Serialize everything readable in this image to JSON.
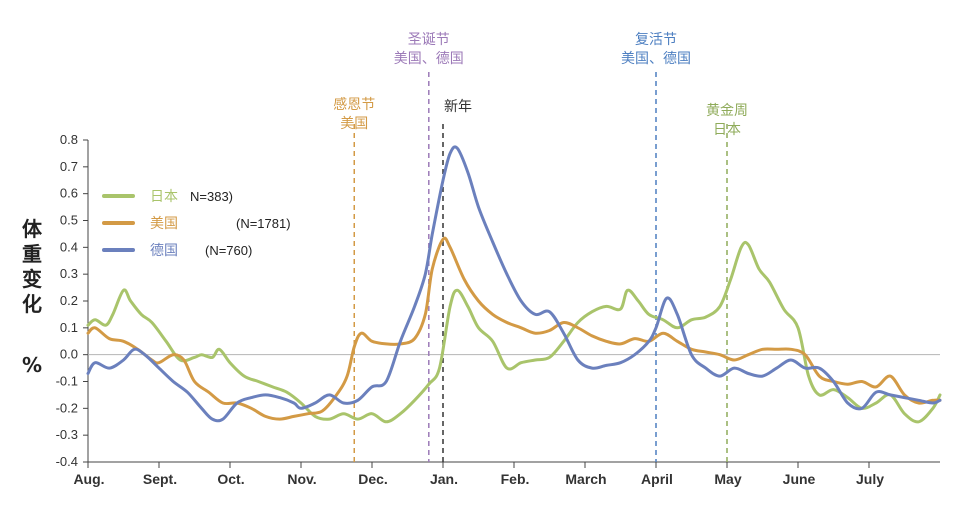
{
  "colors": {
    "japan": "#a9c46b",
    "usa": "#d39a45",
    "germany": "#6b80bd"
  },
  "chart_data": {
    "type": "line",
    "ylabel_chars": [
      "体",
      "重",
      "变",
      "化"
    ],
    "ylabel_unit": "%",
    "ylim": [
      -0.4,
      0.8
    ],
    "yticks": [
      "0.8",
      "0.7",
      "0.6",
      "0.5",
      "0.4",
      "0.3",
      "0.2",
      "0.1",
      "0.0",
      "-0.1",
      "-0.2",
      "-0.3",
      "-0.4"
    ],
    "yticks_values": [
      0.8,
      0.7,
      0.6,
      0.5,
      0.4,
      0.3,
      0.2,
      0.1,
      0.0,
      -0.1,
      -0.2,
      -0.3,
      -0.4
    ],
    "xlim": [
      0,
      12
    ],
    "months": [
      "Aug.",
      "Sept.",
      "Oct.",
      "Nov.",
      "Dec.",
      "Jan.",
      "Feb.",
      "March",
      "April",
      "May",
      "June",
      "July"
    ],
    "month_positions": [
      0,
      1,
      2,
      3,
      4,
      5,
      6,
      7,
      8,
      9,
      10,
      11
    ],
    "legend": [
      {
        "name": "日本",
        "n": "N=383)",
        "color": "#a9c46b"
      },
      {
        "name": "美国",
        "n": "(N=1781)",
        "color": "#d39a45"
      },
      {
        "name": "德国",
        "n": "(N=760)",
        "color": "#6b80bd"
      }
    ],
    "holidays": [
      {
        "line1": "感恩节",
        "line2": "美国",
        "x": 3.75,
        "color": "#d39a45"
      },
      {
        "line1": "圣诞节",
        "line2": "美国、德国",
        "x": 4.8,
        "color": "#9c7ab8"
      },
      {
        "line1": "新年",
        "line2": "",
        "x": 5.0,
        "color": "#333333"
      },
      {
        "line1": "复活节",
        "line2": "美国、德国",
        "x": 8.0,
        "color": "#4d7fc1"
      },
      {
        "line1": "黄金周",
        "line2": "日本",
        "x": 9.0,
        "color": "#8fab5a"
      }
    ],
    "series": [
      {
        "name": "日本",
        "color": "#a9c46b",
        "points": [
          [
            0,
            0.11
          ],
          [
            0.1,
            0.13
          ],
          [
            0.25,
            0.11
          ],
          [
            0.35,
            0.15
          ],
          [
            0.5,
            0.24
          ],
          [
            0.6,
            0.2
          ],
          [
            0.75,
            0.15
          ],
          [
            0.9,
            0.12
          ],
          [
            1.1,
            0.05
          ],
          [
            1.3,
            -0.02
          ],
          [
            1.5,
            -0.01
          ],
          [
            1.6,
            0.0
          ],
          [
            1.75,
            -0.01
          ],
          [
            1.85,
            0.02
          ],
          [
            2.0,
            -0.03
          ],
          [
            2.2,
            -0.08
          ],
          [
            2.4,
            -0.1
          ],
          [
            2.6,
            -0.12
          ],
          [
            2.8,
            -0.14
          ],
          [
            3.0,
            -0.18
          ],
          [
            3.2,
            -0.23
          ],
          [
            3.4,
            -0.24
          ],
          [
            3.6,
            -0.22
          ],
          [
            3.8,
            -0.24
          ],
          [
            4.0,
            -0.22
          ],
          [
            4.2,
            -0.25
          ],
          [
            4.4,
            -0.22
          ],
          [
            4.6,
            -0.17
          ],
          [
            4.8,
            -0.11
          ],
          [
            4.95,
            -0.05
          ],
          [
            5.1,
            0.18
          ],
          [
            5.2,
            0.24
          ],
          [
            5.35,
            0.18
          ],
          [
            5.5,
            0.1
          ],
          [
            5.7,
            0.05
          ],
          [
            5.9,
            -0.05
          ],
          [
            6.1,
            -0.03
          ],
          [
            6.3,
            -0.02
          ],
          [
            6.5,
            -0.01
          ],
          [
            6.7,
            0.05
          ],
          [
            6.9,
            0.12
          ],
          [
            7.1,
            0.16
          ],
          [
            7.3,
            0.18
          ],
          [
            7.5,
            0.17
          ],
          [
            7.6,
            0.24
          ],
          [
            7.75,
            0.2
          ],
          [
            7.9,
            0.15
          ],
          [
            8.1,
            0.13
          ],
          [
            8.3,
            0.1
          ],
          [
            8.5,
            0.13
          ],
          [
            8.7,
            0.14
          ],
          [
            8.9,
            0.18
          ],
          [
            9.05,
            0.28
          ],
          [
            9.2,
            0.4
          ],
          [
            9.3,
            0.41
          ],
          [
            9.45,
            0.32
          ],
          [
            9.6,
            0.27
          ],
          [
            9.8,
            0.17
          ],
          [
            10.0,
            0.1
          ],
          [
            10.15,
            -0.08
          ],
          [
            10.3,
            -0.15
          ],
          [
            10.5,
            -0.13
          ],
          [
            10.7,
            -0.16
          ],
          [
            10.9,
            -0.2
          ],
          [
            11.1,
            -0.18
          ],
          [
            11.3,
            -0.15
          ],
          [
            11.5,
            -0.22
          ],
          [
            11.7,
            -0.25
          ],
          [
            11.9,
            -0.2
          ],
          [
            12.0,
            -0.15
          ]
        ]
      },
      {
        "name": "美国",
        "color": "#d39a45",
        "points": [
          [
            0,
            0.08
          ],
          [
            0.1,
            0.1
          ],
          [
            0.3,
            0.06
          ],
          [
            0.5,
            0.05
          ],
          [
            0.7,
            0.02
          ],
          [
            0.9,
            -0.02
          ],
          [
            1.0,
            -0.03
          ],
          [
            1.2,
            0.0
          ],
          [
            1.35,
            -0.02
          ],
          [
            1.5,
            -0.1
          ],
          [
            1.7,
            -0.14
          ],
          [
            1.9,
            -0.18
          ],
          [
            2.1,
            -0.18
          ],
          [
            2.3,
            -0.2
          ],
          [
            2.5,
            -0.23
          ],
          [
            2.7,
            -0.24
          ],
          [
            2.9,
            -0.23
          ],
          [
            3.1,
            -0.22
          ],
          [
            3.3,
            -0.21
          ],
          [
            3.5,
            -0.15
          ],
          [
            3.65,
            -0.08
          ],
          [
            3.75,
            0.03
          ],
          [
            3.85,
            0.08
          ],
          [
            4.0,
            0.05
          ],
          [
            4.2,
            0.04
          ],
          [
            4.4,
            0.04
          ],
          [
            4.6,
            0.06
          ],
          [
            4.75,
            0.15
          ],
          [
            4.85,
            0.32
          ],
          [
            5.0,
            0.43
          ],
          [
            5.1,
            0.4
          ],
          [
            5.3,
            0.28
          ],
          [
            5.5,
            0.2
          ],
          [
            5.7,
            0.15
          ],
          [
            5.9,
            0.12
          ],
          [
            6.1,
            0.1
          ],
          [
            6.3,
            0.08
          ],
          [
            6.5,
            0.09
          ],
          [
            6.7,
            0.12
          ],
          [
            6.9,
            0.1
          ],
          [
            7.1,
            0.07
          ],
          [
            7.3,
            0.05
          ],
          [
            7.5,
            0.04
          ],
          [
            7.7,
            0.06
          ],
          [
            7.9,
            0.05
          ],
          [
            8.1,
            0.08
          ],
          [
            8.3,
            0.05
          ],
          [
            8.5,
            0.02
          ],
          [
            8.7,
            0.01
          ],
          [
            8.9,
            0.0
          ],
          [
            9.1,
            -0.02
          ],
          [
            9.3,
            0.0
          ],
          [
            9.5,
            0.02
          ],
          [
            9.7,
            0.02
          ],
          [
            9.9,
            0.02
          ],
          [
            10.1,
            0.0
          ],
          [
            10.3,
            -0.08
          ],
          [
            10.5,
            -0.1
          ],
          [
            10.7,
            -0.11
          ],
          [
            10.9,
            -0.1
          ],
          [
            11.1,
            -0.12
          ],
          [
            11.3,
            -0.08
          ],
          [
            11.5,
            -0.15
          ],
          [
            11.7,
            -0.18
          ],
          [
            11.9,
            -0.17
          ],
          [
            12.0,
            -0.17
          ]
        ]
      },
      {
        "name": "德国",
        "color": "#6b80bd",
        "points": [
          [
            0,
            -0.07
          ],
          [
            0.1,
            -0.03
          ],
          [
            0.3,
            -0.05
          ],
          [
            0.5,
            -0.02
          ],
          [
            0.65,
            0.02
          ],
          [
            0.8,
            0.0
          ],
          [
            1.0,
            -0.05
          ],
          [
            1.2,
            -0.1
          ],
          [
            1.4,
            -0.14
          ],
          [
            1.6,
            -0.2
          ],
          [
            1.75,
            -0.24
          ],
          [
            1.9,
            -0.24
          ],
          [
            2.1,
            -0.18
          ],
          [
            2.3,
            -0.16
          ],
          [
            2.5,
            -0.15
          ],
          [
            2.7,
            -0.16
          ],
          [
            2.9,
            -0.18
          ],
          [
            3.0,
            -0.2
          ],
          [
            3.2,
            -0.18
          ],
          [
            3.4,
            -0.15
          ],
          [
            3.6,
            -0.18
          ],
          [
            3.8,
            -0.17
          ],
          [
            4.0,
            -0.12
          ],
          [
            4.2,
            -0.1
          ],
          [
            4.4,
            0.05
          ],
          [
            4.6,
            0.18
          ],
          [
            4.75,
            0.3
          ],
          [
            4.85,
            0.45
          ],
          [
            5.0,
            0.65
          ],
          [
            5.1,
            0.75
          ],
          [
            5.2,
            0.77
          ],
          [
            5.35,
            0.68
          ],
          [
            5.5,
            0.55
          ],
          [
            5.7,
            0.42
          ],
          [
            5.9,
            0.3
          ],
          [
            6.1,
            0.2
          ],
          [
            6.3,
            0.15
          ],
          [
            6.5,
            0.16
          ],
          [
            6.7,
            0.08
          ],
          [
            6.9,
            -0.02
          ],
          [
            7.1,
            -0.05
          ],
          [
            7.3,
            -0.04
          ],
          [
            7.5,
            -0.03
          ],
          [
            7.7,
            0.0
          ],
          [
            7.9,
            0.05
          ],
          [
            8.0,
            0.1
          ],
          [
            8.15,
            0.21
          ],
          [
            8.3,
            0.15
          ],
          [
            8.5,
            0.0
          ],
          [
            8.7,
            -0.05
          ],
          [
            8.9,
            -0.08
          ],
          [
            9.1,
            -0.05
          ],
          [
            9.3,
            -0.07
          ],
          [
            9.5,
            -0.08
          ],
          [
            9.7,
            -0.05
          ],
          [
            9.9,
            -0.02
          ],
          [
            10.1,
            -0.05
          ],
          [
            10.3,
            -0.05
          ],
          [
            10.5,
            -0.1
          ],
          [
            10.7,
            -0.18
          ],
          [
            10.9,
            -0.2
          ],
          [
            11.1,
            -0.14
          ],
          [
            11.3,
            -0.15
          ],
          [
            11.5,
            -0.16
          ],
          [
            11.7,
            -0.17
          ],
          [
            11.9,
            -0.18
          ],
          [
            12.0,
            -0.17
          ]
        ]
      }
    ]
  }
}
